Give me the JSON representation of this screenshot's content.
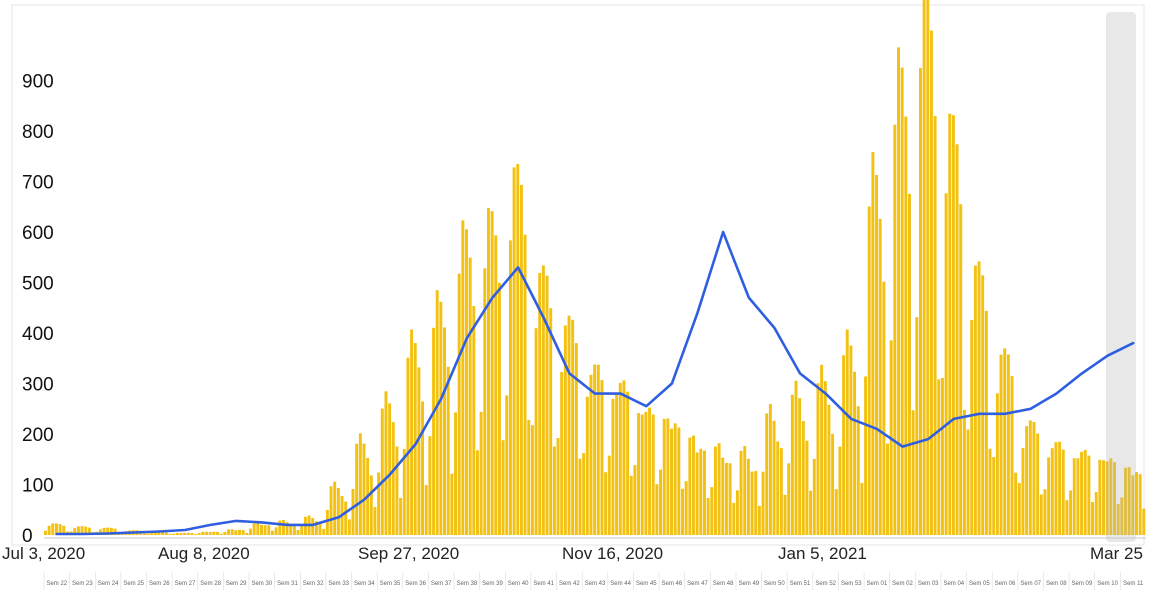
{
  "chart_data": {
    "type": "bar",
    "title": "",
    "xlabel": "",
    "ylabel": "",
    "ylim": [
      0,
      1020
    ],
    "grid": false,
    "y_ticks": [
      0,
      100,
      200,
      300,
      400,
      500,
      600,
      700,
      800,
      900
    ],
    "x_date_labels": [
      "Jul 3, 2020",
      "Aug 8, 2020",
      "Sep 27, 2020",
      "Nov 16, 2020",
      "Jan 5, 2021",
      "Mar 25"
    ],
    "week_labels": [
      "Sem 22",
      "Sem 23",
      "Sem 24",
      "Sem 25",
      "Sem 26",
      "Sem 27",
      "Sem 28",
      "Sem 29",
      "Sem 30",
      "Sem 31",
      "Sem 32",
      "Sem 33",
      "Sem 34",
      "Sem 35",
      "Sem 36",
      "Sem 37",
      "Sem 38",
      "Sem 39",
      "Sem 40",
      "Sem 41",
      "Sem 42",
      "Sem 43",
      "Sem 44",
      "Sem 45",
      "Sem 46",
      "Sem 47",
      "Sem 48",
      "Sem 49",
      "Sem 50",
      "Sem 51",
      "Sem 52",
      "Sem 53",
      "Sem 01",
      "Sem 02",
      "Sem 03",
      "Sem 04",
      "Sem 05",
      "Sem 06",
      "Sem 07",
      "Sem 08",
      "Sem 09",
      "Sem 10",
      "Sem 11"
    ],
    "bar_weekly_values": [
      18,
      14,
      12,
      8,
      5,
      4,
      6,
      10,
      20,
      24,
      30,
      80,
      150,
      210,
      300,
      360,
      470,
      500,
      580,
      430,
      360,
      290,
      270,
      230,
      210,
      170,
      150,
      140,
      200,
      230,
      250,
      300,
      560,
      720,
      850,
      650,
      430,
      300,
      190,
      160,
      150,
      140,
      120
    ],
    "line_weekly_values": [
      2,
      2,
      3,
      5,
      7,
      10,
      20,
      28,
      25,
      20,
      20,
      35,
      70,
      120,
      180,
      270,
      390,
      470,
      530,
      430,
      320,
      280,
      280,
      255,
      300,
      440,
      600,
      470,
      410,
      320,
      280,
      230,
      210,
      175,
      190,
      230,
      240,
      240,
      250,
      280,
      320,
      355,
      380
    ],
    "series": [
      {
        "name": "",
        "color": "#f2c112"
      },
      {
        "name": "",
        "color": "#2f5fe0"
      }
    ]
  }
}
